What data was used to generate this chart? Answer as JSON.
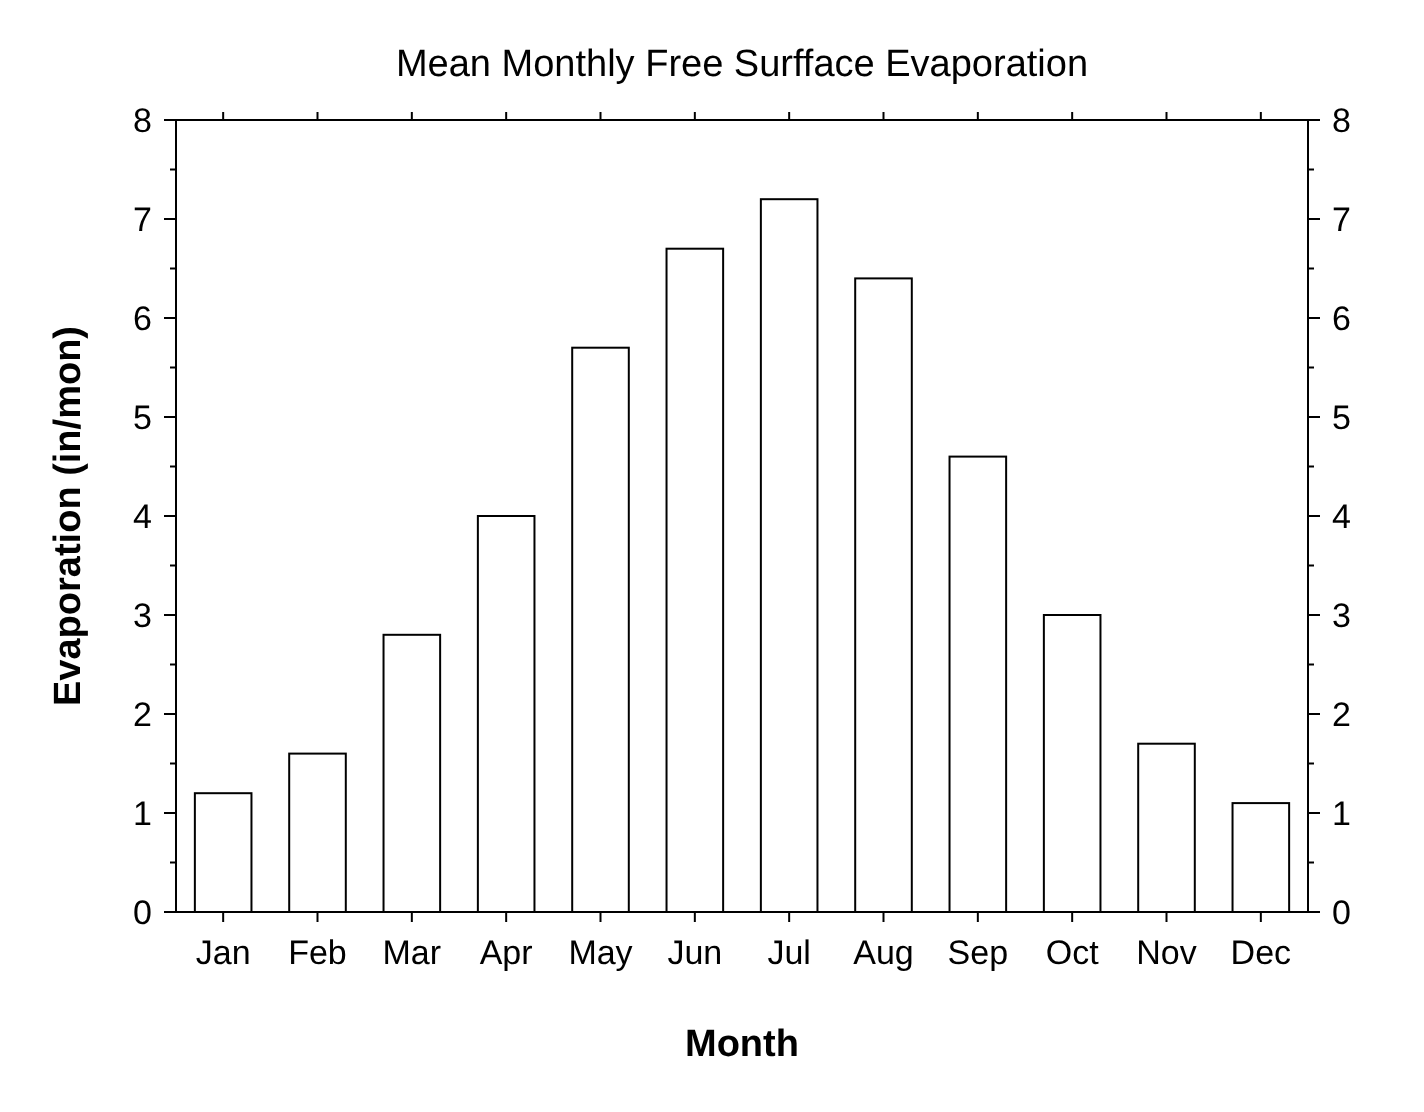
{
  "chart_data": {
    "type": "bar",
    "title": "Mean Monthly Free Surfface Evaporation",
    "xlabel": "Month",
    "ylabel": "Evaporation (in/mon)",
    "categories": [
      "Jan",
      "Feb",
      "Mar",
      "Apr",
      "May",
      "Jun",
      "Jul",
      "Aug",
      "Sep",
      "Oct",
      "Nov",
      "Dec"
    ],
    "values": [
      1.2,
      1.6,
      2.8,
      4.0,
      5.7,
      6.7,
      7.2,
      6.4,
      4.6,
      3.0,
      1.7,
      1.1
    ],
    "color": "#ffffff",
    "ylim": [
      0,
      8
    ],
    "yticks": [
      0,
      1,
      2,
      3,
      4,
      5,
      6,
      7,
      8
    ],
    "y2lim": [
      0,
      8
    ],
    "y2ticks": [
      0,
      1,
      2,
      3,
      4,
      5,
      6,
      7,
      8
    ],
    "grid": false
  }
}
